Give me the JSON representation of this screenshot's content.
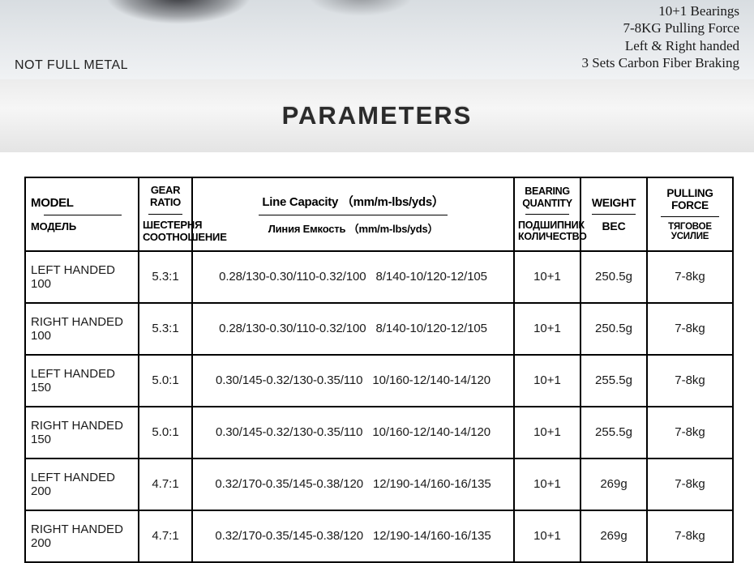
{
  "hero": {
    "notFullMetal": "NOT FULL METAL",
    "specs": [
      "10+1 Bearings",
      "7-8KG Pulling Force",
      "Left & Right handed",
      "3 Sets Carbon Fiber Braking"
    ]
  },
  "paramsTitle": "PARAMETERS",
  "table": {
    "headers": [
      {
        "top": "MODEL",
        "bot": "МОДЕЛЬ"
      },
      {
        "top": "GEAR RATIO",
        "bot": "ШЕСТЕРНЯ СООТНОШЕНИЕ"
      },
      {
        "top": "Line Capacity （mm/m-lbs/yds）",
        "bot": "Линия Емкость （mm/m-lbs/yds）"
      },
      {
        "top": "BEARING QUANTITY",
        "bot": "ПОДШИПНИК КОЛИЧЕСТВО"
      },
      {
        "top": "WEIGHT",
        "bot": "ВЕС"
      },
      {
        "top": "PULLING FORCE",
        "bot": "ТЯГОВОЕ УСИЛИЕ"
      }
    ],
    "rows": [
      {
        "model": "LEFT HANDED 100",
        "gear": "5.3:1",
        "line1": "0.28/130-0.30/110-0.32/100",
        "line2": "8/140-10/120-12/105",
        "bearing": "10+1",
        "weight": "250.5g",
        "pull": "7-8kg"
      },
      {
        "model": "RIGHT HANDED 100",
        "gear": "5.3:1",
        "line1": "0.28/130-0.30/110-0.32/100",
        "line2": "8/140-10/120-12/105",
        "bearing": "10+1",
        "weight": "250.5g",
        "pull": "7-8kg"
      },
      {
        "model": "LEFT HANDED 150",
        "gear": "5.0:1",
        "line1": "0.30/145-0.32/130-0.35/110",
        "line2": "10/160-12/140-14/120",
        "bearing": "10+1",
        "weight": "255.5g",
        "pull": "7-8kg"
      },
      {
        "model": "RIGHT HANDED 150",
        "gear": "5.0:1",
        "line1": "0.30/145-0.32/130-0.35/110",
        "line2": "10/160-12/140-14/120",
        "bearing": "10+1",
        "weight": "255.5g",
        "pull": "7-8kg"
      },
      {
        "model": "LEFT HANDED 200",
        "gear": "4.7:1",
        "line1": "0.32/170-0.35/145-0.38/120",
        "line2": "12/190-14/160-16/135",
        "bearing": "10+1",
        "weight": "269g",
        "pull": "7-8kg"
      },
      {
        "model": "RIGHT HANDED 200",
        "gear": "4.7:1",
        "line1": "0.32/170-0.35/145-0.38/120",
        "line2": "12/190-14/160-16/135",
        "bearing": "10+1",
        "weight": "269g",
        "pull": "7-8kg"
      }
    ]
  },
  "colors": {
    "heroGradTop": "#d8dde1",
    "bannerGrad": "#ececec",
    "border": "#000000",
    "text": "#1a1a1a"
  },
  "fontsizes": {
    "paramsTitle": 31,
    "specs": 17,
    "thTop": 15,
    "thBot": 13,
    "td": 16
  }
}
